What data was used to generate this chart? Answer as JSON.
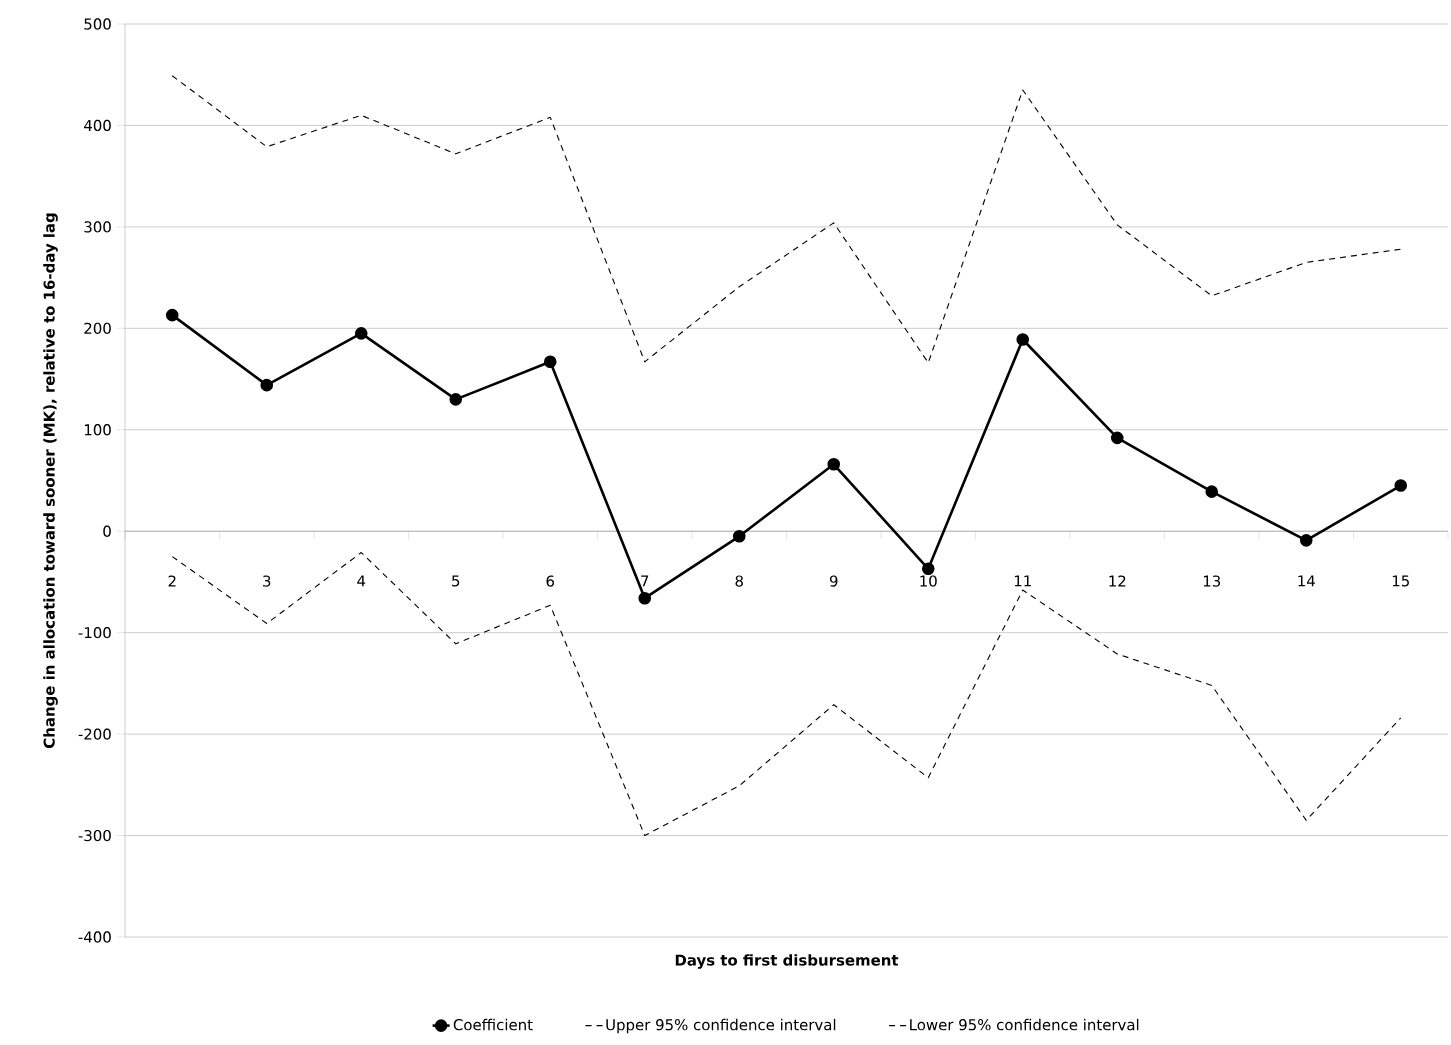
{
  "chart_data": {
    "type": "line",
    "xlabel": "Days to first disbursement",
    "ylabel": "Change in allocation toward sooner (MK), relative to 16-day lag",
    "categories": [
      "2",
      "3",
      "4",
      "5",
      "6",
      "7",
      "8",
      "9",
      "10",
      "11",
      "12",
      "13",
      "14",
      "15"
    ],
    "series": [
      {
        "name": "Coefficient",
        "color": "#000000",
        "line_style": "solid",
        "marker": "circle",
        "values": [
          213,
          144,
          195,
          130,
          167,
          -66,
          -5,
          66,
          -37,
          189,
          92,
          39,
          -9,
          45
        ]
      },
      {
        "name": "Upper 95% confidence interval",
        "color": "#000000",
        "line_style": "dashed",
        "marker": "none",
        "values": [
          449,
          379,
          410,
          372,
          408,
          167,
          241,
          304,
          166,
          435,
          302,
          232,
          265,
          278
        ]
      },
      {
        "name": "Lower 95% confidence interval",
        "color": "#000000",
        "line_style": "dashed",
        "marker": "none",
        "values": [
          -25,
          -91,
          -21,
          -111,
          -73,
          -300,
          -251,
          -171,
          -243,
          -58,
          -121,
          -152,
          -285,
          -184
        ]
      }
    ],
    "ylim": [
      -400,
      500
    ],
    "yticks": [
      -400,
      -300,
      -200,
      -100,
      0,
      100,
      200,
      300,
      400,
      500
    ],
    "grid": "y",
    "legend": "bottom"
  }
}
